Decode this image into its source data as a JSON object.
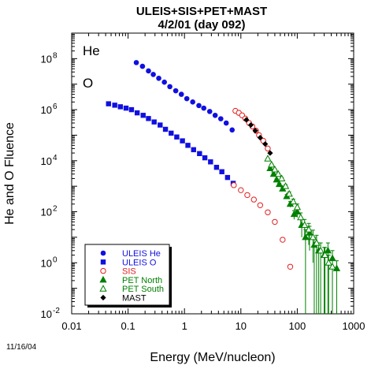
{
  "chart_data": {
    "type": "scatter",
    "title": "ULEIS+SIS+PET+MAST",
    "subtitle": "4/2/01 (day 092)",
    "xlabel": "Energy (MeV/nucleon)",
    "ylabel": "He and O Fluence",
    "xscale": "log",
    "yscale": "log",
    "xlim": [
      0.01,
      1000
    ],
    "ylim": [
      0.01,
      1000000000
    ],
    "x_tick_labels": [
      "0.01",
      "0.1",
      "1",
      "10",
      "100",
      "1000"
    ],
    "y_tick_labels": [
      {
        "base": "10",
        "exp": "-2"
      },
      {
        "base": "10",
        "exp": "0"
      },
      {
        "base": "10",
        "exp": "2"
      },
      {
        "base": "10",
        "exp": "4"
      },
      {
        "base": "10",
        "exp": "6"
      },
      {
        "base": "10",
        "exp": "8"
      }
    ],
    "annotations": [
      "He",
      "O"
    ],
    "date_stamp": "11/16/04",
    "legend_position": "bottom-left",
    "series": [
      {
        "name": "ULEIS He",
        "color": "#1010e0",
        "marker": "circle-filled",
        "x": [
          0.14,
          0.18,
          0.23,
          0.28,
          0.35,
          0.44,
          0.55,
          0.7,
          0.88,
          1.1,
          1.4,
          1.8,
          2.2,
          2.8,
          3.5,
          4.4,
          5.5,
          7.0
        ],
        "y": [
          70000000,
          50000000,
          33000000,
          24000000,
          17000000,
          12000000,
          8000000,
          5500000,
          4000000,
          2700000,
          2000000,
          1450000,
          1150000,
          850000,
          600000,
          440000,
          300000,
          160000
        ]
      },
      {
        "name": "ULEIS O",
        "color": "#1010e0",
        "marker": "square-filled",
        "x": [
          0.045,
          0.058,
          0.073,
          0.092,
          0.115,
          0.145,
          0.185,
          0.23,
          0.29,
          0.37,
          0.46,
          0.58,
          0.73,
          0.92,
          1.15,
          1.45,
          1.85,
          2.3,
          2.9,
          3.7,
          4.6,
          5.8,
          7.3
        ],
        "y": [
          1700000,
          1500000,
          1300000,
          1150000,
          1000000,
          750000,
          600000,
          450000,
          330000,
          250000,
          170000,
          120000,
          85000,
          60000,
          40000,
          27000,
          19000,
          13000,
          9000,
          5500,
          3700,
          2200,
          1300
        ]
      },
      {
        "name": "SIS",
        "color": "#e02020",
        "marker": "circle-open",
        "x": [
          8.0,
          9.2,
          10.5,
          12.0,
          14.0,
          16.0,
          18.5,
          21.0,
          25.0,
          30.0,
          7.5,
          10.0,
          13.0,
          17.0,
          22.0,
          30.0,
          40.0,
          55.0,
          75.0
        ],
        "y": [
          900000,
          750000,
          600000,
          450000,
          300000,
          220000,
          150000,
          100000,
          60000,
          30000,
          1100,
          700,
          450,
          300,
          180,
          95,
          40,
          8,
          0.7
        ]
      },
      {
        "name": "PET North",
        "color": "#008000",
        "marker": "triangle-filled",
        "x": [
          33,
          38,
          43,
          48,
          55,
          65,
          75,
          88,
          100,
          120,
          140,
          165,
          200,
          240,
          300,
          350,
          420,
          500
        ],
        "y": [
          5000,
          3000,
          1800,
          1200,
          800,
          400,
          200,
          80,
          100,
          30,
          10,
          15,
          5,
          3,
          2,
          3,
          1.5,
          0.6
        ],
        "yerr": [
          300,
          200,
          150,
          120,
          100,
          70,
          50,
          30,
          40,
          20,
          10,
          12,
          5,
          3,
          2,
          3,
          1.5,
          0.6
        ]
      },
      {
        "name": "PET South",
        "color": "#008000",
        "marker": "triangle-open",
        "x": [
          30,
          35,
          40,
          46,
          53,
          62,
          72,
          85,
          100,
          115,
          135,
          160,
          190,
          220,
          260,
          310,
          360,
          420
        ],
        "y": [
          12000,
          7000,
          4500,
          3000,
          2000,
          1000,
          500,
          250,
          150,
          60,
          30,
          20,
          10,
          6,
          3,
          2,
          1,
          0.7
        ],
        "yerr": [
          500,
          400,
          300,
          250,
          200,
          150,
          100,
          60,
          50,
          30,
          20,
          15,
          9,
          6,
          3,
          2,
          1,
          0.7
        ]
      },
      {
        "name": "MAST",
        "color": "#000000",
        "marker": "diamond-filled",
        "x": [
          12.5,
          15.0,
          18.0,
          22.0,
          27.0,
          33.0
        ],
        "y": [
          400000,
          250000,
          150000,
          80000,
          45000,
          20000
        ]
      }
    ]
  }
}
